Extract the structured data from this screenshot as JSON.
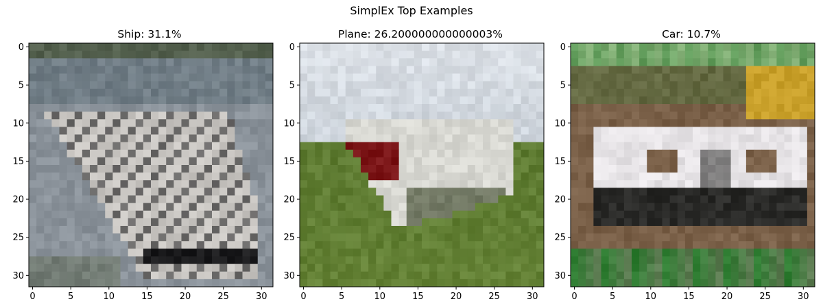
{
  "suptitle": "SimplEx Top Examples",
  "chart_data": [
    {
      "type": "image",
      "title": "Ship: 31.1%",
      "xticks": [
        "0",
        "5",
        "10",
        "15",
        "20",
        "25",
        "30"
      ],
      "yticks": [
        "0",
        "5",
        "10",
        "15",
        "20",
        "25",
        "30"
      ],
      "xlim": [
        -0.5,
        31.5
      ],
      "ylim": [
        31.5,
        -0.5
      ],
      "pixel_grid": [
        32,
        32
      ],
      "palette": {
        "sky": "#5f6f78",
        "water": "#8a929a",
        "hull": "#c9c6c2",
        "dark": "#1c1c1e",
        "shore": "#4f5a3c"
      }
    },
    {
      "type": "image",
      "title": "Plane: 26.200000000000003%",
      "xticks": [
        "0",
        "5",
        "10",
        "15",
        "20",
        "25",
        "30"
      ],
      "yticks": [
        "0",
        "5",
        "10",
        "15",
        "20",
        "25",
        "30"
      ],
      "xlim": [
        -0.5,
        31.5
      ],
      "ylim": [
        31.5,
        -0.5
      ],
      "pixel_grid": [
        32,
        32
      ],
      "palette": {
        "sky": "#ccd3db",
        "grass": "#5d7a31",
        "red": "#7a1416",
        "white": "#d8d8d2",
        "dark": "#2f3a1c"
      }
    },
    {
      "type": "image",
      "title": "Car: 10.7%",
      "xticks": [
        "0",
        "5",
        "10",
        "15",
        "20",
        "25",
        "30"
      ],
      "yticks": [
        "0",
        "5",
        "10",
        "15",
        "20",
        "25",
        "30"
      ],
      "xlim": [
        -0.5,
        31.5
      ],
      "ylim": [
        31.5,
        -0.5
      ],
      "pixel_grid": [
        32,
        32
      ],
      "palette": {
        "green": "#2f7d32",
        "body": "#e6e3e6",
        "brown": "#7a6048",
        "dark": "#2a2a28",
        "yellow": "#c9a02a"
      }
    }
  ]
}
